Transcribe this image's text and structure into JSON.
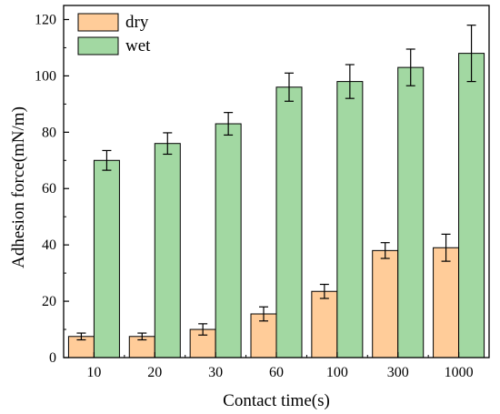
{
  "chart_data": {
    "type": "bar",
    "xlabel": "Contact time(s)",
    "ylabel": "Adhesion force(mN/m)",
    "ylim": [
      0,
      125
    ],
    "yticks": [
      0,
      20,
      40,
      60,
      80,
      100,
      120
    ],
    "categories": [
      "10",
      "20",
      "30",
      "60",
      "100",
      "300",
      "1000"
    ],
    "legend_position": "top-left",
    "grid": false,
    "series": [
      {
        "name": "dry",
        "color": "#FFCC99",
        "values": [
          7.5,
          7.5,
          10,
          15.5,
          23.5,
          38,
          39
        ],
        "errors": [
          1.2,
          1.2,
          2,
          2.5,
          2.5,
          2.8,
          4.8
        ]
      },
      {
        "name": "wet",
        "color": "#A2D8A2",
        "values": [
          70,
          76,
          83,
          96,
          98,
          103,
          108
        ],
        "errors": [
          3.5,
          3.8,
          4,
          5,
          6,
          6.5,
          10
        ]
      }
    ]
  }
}
